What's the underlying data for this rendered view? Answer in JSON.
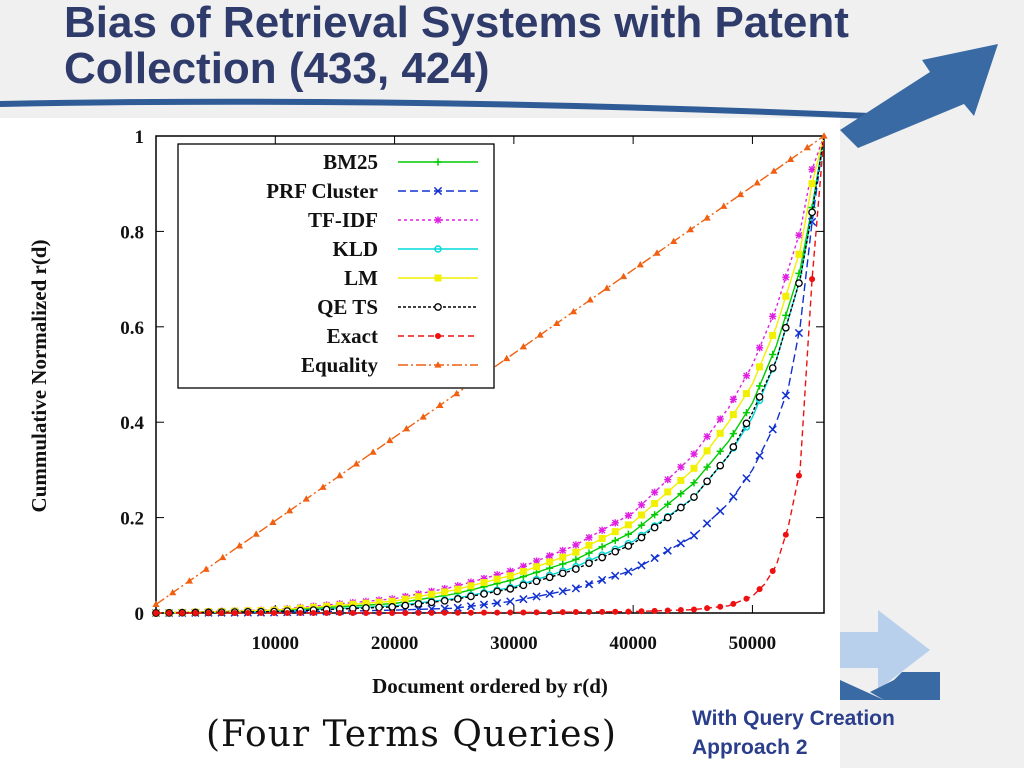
{
  "slide": {
    "title": "Bias of Retrieval Systems with Patent Collection (433, 424)",
    "caption": "(Four Terms Queries)",
    "note_line1": "With Query Creation",
    "note_line2": "Approach 2",
    "accent_color": "#3a6aa4",
    "light_accent_color": "#b8d0ec",
    "deco_icons": [
      "arrow-right-icon"
    ]
  },
  "chart_data": {
    "type": "line",
    "title": "",
    "xlabel": "Document ordered by r(d)",
    "ylabel": "Cummulative Normalized r(d)",
    "xlim": [
      0,
      56000
    ],
    "ylim": [
      0,
      1
    ],
    "x_ticks": [
      10000,
      20000,
      30000,
      40000,
      50000
    ],
    "y_ticks": [
      0,
      0.2,
      0.4,
      0.6,
      0.8,
      1
    ],
    "y_tick_labels": [
      "0",
      "0.2",
      "0.4",
      "0.6",
      "0.8",
      "1"
    ],
    "grid": false,
    "legend_position": "top-left",
    "series": [
      {
        "name": "BM25",
        "color": "#00cc00",
        "dash": "",
        "marker": "plus",
        "x": [
          0,
          10000,
          20000,
          25000,
          30000,
          35000,
          40000,
          45000,
          48000,
          50000,
          52000,
          54000,
          55000,
          56000
        ],
        "y": [
          0,
          0.005,
          0.02,
          0.04,
          0.07,
          0.11,
          0.17,
          0.27,
          0.36,
          0.44,
          0.56,
          0.72,
          0.85,
          1.0
        ]
      },
      {
        "name": "PRF Cluster",
        "color": "#1030d0",
        "dash": "8,4",
        "marker": "x",
        "x": [
          0,
          10000,
          20000,
          25000,
          30000,
          35000,
          40000,
          45000,
          48000,
          50000,
          52000,
          53000,
          54000,
          55000,
          56000
        ],
        "y": [
          0,
          0.001,
          0.006,
          0.01,
          0.025,
          0.05,
          0.09,
          0.16,
          0.23,
          0.3,
          0.4,
          0.47,
          0.6,
          0.82,
          1.0
        ]
      },
      {
        "name": "TF-IDF",
        "color": "#e020e0",
        "dash": "3,3",
        "marker": "star",
        "x": [
          0,
          10000,
          20000,
          25000,
          30000,
          35000,
          40000,
          45000,
          48000,
          50000,
          52000,
          54000,
          55000,
          56000
        ],
        "y": [
          0,
          0.007,
          0.03,
          0.055,
          0.09,
          0.14,
          0.21,
          0.33,
          0.43,
          0.52,
          0.64,
          0.8,
          0.93,
          1.0
        ]
      },
      {
        "name": "KLD",
        "color": "#00d8d8",
        "dash": "",
        "marker": "circle",
        "x": [
          0,
          10000,
          20000,
          25000,
          30000,
          35000,
          40000,
          45000,
          48000,
          50000,
          52000,
          54000,
          55000,
          56000
        ],
        "y": [
          0,
          0.003,
          0.015,
          0.03,
          0.055,
          0.095,
          0.15,
          0.24,
          0.33,
          0.41,
          0.53,
          0.7,
          0.84,
          1.0
        ]
      },
      {
        "name": "LM",
        "color": "#f0f000",
        "dash": "",
        "marker": "square",
        "x": [
          0,
          10000,
          20000,
          25000,
          30000,
          35000,
          40000,
          45000,
          48000,
          50000,
          52000,
          54000,
          55000,
          56000
        ],
        "y": [
          0,
          0.006,
          0.025,
          0.048,
          0.08,
          0.125,
          0.19,
          0.3,
          0.4,
          0.48,
          0.6,
          0.76,
          0.9,
          1.0
        ]
      },
      {
        "name": "QE TS",
        "color": "#000000",
        "dash": "3,2",
        "marker": "ocircle",
        "x": [
          0,
          10000,
          20000,
          25000,
          30000,
          35000,
          40000,
          45000,
          48000,
          50000,
          52000,
          54000,
          55000,
          56000
        ],
        "y": [
          0,
          0.003,
          0.013,
          0.028,
          0.052,
          0.09,
          0.145,
          0.24,
          0.33,
          0.42,
          0.53,
          0.7,
          0.84,
          1.0
        ]
      },
      {
        "name": "Exact",
        "color": "#ee1010",
        "dash": "6,4",
        "marker": "dot",
        "x": [
          0,
          20000,
          30000,
          40000,
          45000,
          48000,
          50000,
          51000,
          52000,
          53000,
          54000,
          55000,
          56000
        ],
        "y": [
          0,
          0,
          0.001,
          0.003,
          0.007,
          0.015,
          0.035,
          0.06,
          0.1,
          0.18,
          0.3,
          0.7,
          1.0
        ]
      },
      {
        "name": "Equality",
        "color": "#f06010",
        "dash": "10,3,2,3",
        "marker": "triangle",
        "x": [
          0,
          56000
        ],
        "y": [
          0.018,
          1.0
        ]
      }
    ]
  }
}
